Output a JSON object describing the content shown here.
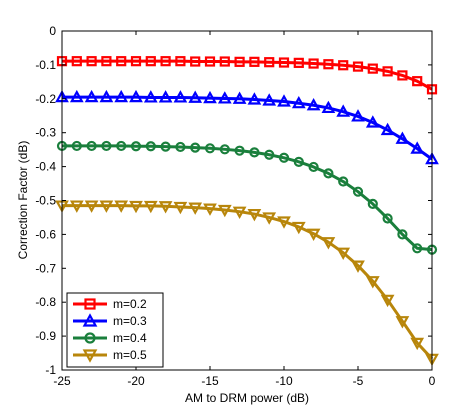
{
  "chart_data": {
    "type": "line",
    "xlabel": "AM to DRM power (dB)",
    "ylabel": "Correction Factor (dB)",
    "xlim": [
      -25,
      0
    ],
    "ylim": [
      -1,
      0
    ],
    "xticks": [
      -25,
      -20,
      -15,
      -10,
      -5,
      0
    ],
    "yticks": [
      0,
      -0.1,
      -0.2,
      -0.3,
      -0.4,
      -0.5,
      -0.6,
      -0.7,
      -0.8,
      -0.9,
      -1
    ],
    "grid": false,
    "legend_position": "bottom-left",
    "x": [
      -25,
      -24,
      -23,
      -22,
      -21,
      -20,
      -19,
      -18,
      -17,
      -16,
      -15,
      -14,
      -13,
      -12,
      -11,
      -10,
      -9,
      -8,
      -7,
      -6,
      -5,
      -4,
      -3,
      -2,
      -1,
      0
    ],
    "series": [
      {
        "name": "m=0.2",
        "color": "#ff0000",
        "marker": "square",
        "values": [
          -0.089,
          -0.089,
          -0.089,
          -0.089,
          -0.089,
          -0.089,
          -0.089,
          -0.089,
          -0.089,
          -0.09,
          -0.09,
          -0.09,
          -0.091,
          -0.091,
          -0.092,
          -0.093,
          -0.094,
          -0.096,
          -0.098,
          -0.101,
          -0.105,
          -0.111,
          -0.119,
          -0.131,
          -0.148,
          -0.172
        ]
      },
      {
        "name": "m=0.3",
        "color": "#0000ff",
        "marker": "triangle-up",
        "values": [
          -0.195,
          -0.195,
          -0.195,
          -0.195,
          -0.195,
          -0.195,
          -0.196,
          -0.196,
          -0.196,
          -0.197,
          -0.198,
          -0.199,
          -0.2,
          -0.202,
          -0.205,
          -0.208,
          -0.213,
          -0.219,
          -0.227,
          -0.238,
          -0.252,
          -0.27,
          -0.292,
          -0.318,
          -0.347,
          -0.378
        ]
      },
      {
        "name": "m=0.4",
        "color": "#1a7f3c",
        "marker": "circle",
        "values": [
          -0.339,
          -0.339,
          -0.339,
          -0.339,
          -0.339,
          -0.34,
          -0.34,
          -0.341,
          -0.342,
          -0.344,
          -0.346,
          -0.349,
          -0.353,
          -0.358,
          -0.365,
          -0.374,
          -0.386,
          -0.401,
          -0.42,
          -0.444,
          -0.474,
          -0.51,
          -0.553,
          -0.6,
          -0.641,
          -0.645
        ]
      },
      {
        "name": "m=0.5",
        "color": "#b8860b",
        "marker": "triangle-down",
        "values": [
          -0.515,
          -0.515,
          -0.515,
          -0.515,
          -0.515,
          -0.516,
          -0.516,
          -0.517,
          -0.519,
          -0.521,
          -0.524,
          -0.528,
          -0.533,
          -0.54,
          -0.55,
          -0.562,
          -0.578,
          -0.598,
          -0.623,
          -0.654,
          -0.692,
          -0.738,
          -0.793,
          -0.856,
          -0.92,
          -0.967
        ]
      }
    ]
  }
}
